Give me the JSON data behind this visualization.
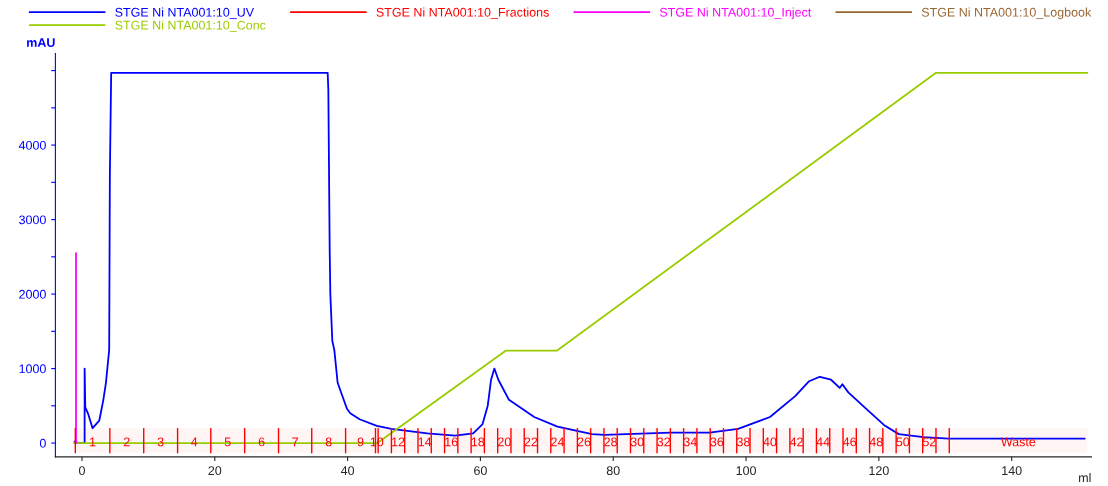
{
  "chart_data": {
    "type": "line",
    "ylabel": "mAU",
    "xlabel": "ml",
    "xlim": [
      -4,
      152
    ],
    "xticks": [
      0,
      20,
      40,
      60,
      80,
      100,
      120,
      140
    ],
    "ylim": [
      -185,
      5230
    ],
    "yticks": [
      0,
      {
        "value": 500,
        "label": null
      },
      1000,
      {
        "value": 1500,
        "label": null
      },
      2000,
      {
        "value": 2500,
        "label": null
      },
      3000,
      {
        "value": 3500,
        "label": null
      },
      4000,
      {
        "value": 4500,
        "label": null
      },
      {
        "value": 5000,
        "label": null
      }
    ],
    "legend": "top",
    "grid": false,
    "marker": "none",
    "series": [
      {
        "name": "STGE Ni NTA001:10_UV",
        "color": "#0000ff",
        "x": [
          -1.1,
          -0.6,
          0.4,
          0.4,
          0.5,
          0.9,
          1.6,
          2.6,
          3.2,
          3.6,
          4.1,
          4.2,
          4.4,
          37.0,
          37.1,
          37.3,
          37.4,
          37.7,
          38.0,
          38.5,
          39.9,
          40.4,
          41.8,
          44.4,
          46.6,
          52.0,
          56.2,
          58.9,
          60.3,
          61.1,
          61.6,
          62.1,
          62.7,
          64.3,
          68.1,
          71.6,
          76.8,
          78.7,
          88.6,
          94.5,
          98.8,
          103.6,
          107.4,
          109.5,
          111.1,
          112.8,
          114.1,
          114.5,
          115.4,
          118.1,
          120.8,
          123.0,
          126.7,
          130.5,
          151.0
        ],
        "values": [
          20,
          0,
          0,
          1000,
          480,
          400,
          200,
          300,
          570,
          800,
          1250,
          3600,
          4970,
          4970,
          4740,
          2610,
          2000,
          1370,
          1250,
          810,
          460,
          400,
          320,
          230,
          190,
          130,
          100,
          130,
          250,
          500,
          850,
          1000,
          850,
          580,
          350,
          220,
          120,
          110,
          140,
          140,
          190,
          350,
          630,
          830,
          890,
          850,
          740,
          790,
          680,
          460,
          240,
          120,
          80,
          60,
          60
        ]
      },
      {
        "name": "STGE Ni NTA001:10_Conc",
        "color": "#99cc00",
        "x": [
          -1.2,
          44.5,
          63.8,
          71.5,
          128.6,
          151.4
        ],
        "values": [
          0,
          0,
          1240,
          1240,
          4970,
          4970
        ]
      },
      {
        "name": "STGE Ni NTA001:10_Fractions",
        "color": "#ff0000"
      },
      {
        "name": "STGE Ni NTA001:10_Inject",
        "color": "#ff00ff",
        "x": [
          -0.9,
          -0.9
        ],
        "values": [
          0,
          2550
        ]
      },
      {
        "name": "STGE Ni NTA001:10_Logbook",
        "color": "#996633"
      }
    ],
    "bands": [
      {
        "axis": "x",
        "from": -1.0,
        "to": 4.2,
        "label": "1",
        "color": "#ff0000"
      },
      {
        "axis": "x",
        "from": 4.2,
        "to": 9.3,
        "label": "2",
        "color": "#ff0000"
      },
      {
        "axis": "x",
        "from": 9.3,
        "to": 14.4,
        "label": "3",
        "color": "#ff0000"
      },
      {
        "axis": "x",
        "from": 14.4,
        "to": 19.4,
        "label": "4",
        "color": "#ff0000"
      },
      {
        "axis": "x",
        "from": 19.4,
        "to": 24.5,
        "label": "5",
        "color": "#ff0000"
      },
      {
        "axis": "x",
        "from": 24.5,
        "to": 29.6,
        "label": "6",
        "color": "#ff0000"
      },
      {
        "axis": "x",
        "from": 29.6,
        "to": 34.6,
        "label": "7",
        "color": "#ff0000"
      },
      {
        "axis": "x",
        "from": 34.6,
        "to": 39.7,
        "label": "8",
        "color": "#ff0000"
      },
      {
        "axis": "x",
        "from": 39.7,
        "to": 44.2,
        "label": "9",
        "color": "#ff0000"
      },
      {
        "axis": "x",
        "from": 44.2,
        "to": 44.6,
        "label": "10",
        "color": "#ff0000"
      },
      {
        "axis": "x",
        "from": 44.6,
        "to": 46.6,
        "color": "#ff0000"
      },
      {
        "axis": "x",
        "from": 46.6,
        "to": 48.6,
        "label": "12",
        "color": "#ff0000"
      },
      {
        "axis": "x",
        "from": 48.6,
        "to": 50.6,
        "color": "#ff0000"
      },
      {
        "axis": "x",
        "from": 50.6,
        "to": 52.6,
        "label": "14",
        "color": "#ff0000"
      },
      {
        "axis": "x",
        "from": 52.6,
        "to": 54.6,
        "color": "#ff0000"
      },
      {
        "axis": "x",
        "from": 54.6,
        "to": 56.6,
        "label": "16",
        "color": "#ff0000"
      },
      {
        "axis": "x",
        "from": 56.6,
        "to": 58.6,
        "color": "#ff0000"
      },
      {
        "axis": "x",
        "from": 58.6,
        "to": 60.6,
        "label": "18",
        "color": "#ff0000"
      },
      {
        "axis": "x",
        "from": 60.6,
        "to": 62.6,
        "color": "#ff0000"
      },
      {
        "axis": "x",
        "from": 62.6,
        "to": 64.6,
        "label": "20",
        "color": "#ff0000"
      },
      {
        "axis": "x",
        "from": 64.6,
        "to": 66.6,
        "color": "#ff0000"
      },
      {
        "axis": "x",
        "from": 66.6,
        "to": 68.6,
        "label": "22",
        "color": "#ff0000"
      },
      {
        "axis": "x",
        "from": 68.6,
        "to": 70.6,
        "color": "#ff0000"
      },
      {
        "axis": "x",
        "from": 70.6,
        "to": 72.6,
        "label": "24",
        "color": "#ff0000"
      },
      {
        "axis": "x",
        "from": 72.6,
        "to": 74.6,
        "color": "#ff0000"
      },
      {
        "axis": "x",
        "from": 74.6,
        "to": 76.6,
        "label": "26",
        "color": "#ff0000"
      },
      {
        "axis": "x",
        "from": 76.6,
        "to": 78.6,
        "color": "#ff0000"
      },
      {
        "axis": "x",
        "from": 78.6,
        "to": 80.6,
        "label": "28",
        "color": "#ff0000"
      },
      {
        "axis": "x",
        "from": 80.6,
        "to": 82.6,
        "color": "#ff0000"
      },
      {
        "axis": "x",
        "from": 82.6,
        "to": 84.6,
        "label": "30",
        "color": "#ff0000"
      },
      {
        "axis": "x",
        "from": 84.6,
        "to": 86.6,
        "color": "#ff0000"
      },
      {
        "axis": "x",
        "from": 86.6,
        "to": 88.6,
        "label": "32",
        "color": "#ff0000"
      },
      {
        "axis": "x",
        "from": 88.6,
        "to": 90.6,
        "color": "#ff0000"
      },
      {
        "axis": "x",
        "from": 90.6,
        "to": 92.6,
        "label": "34",
        "color": "#ff0000"
      },
      {
        "axis": "x",
        "from": 92.6,
        "to": 94.6,
        "color": "#ff0000"
      },
      {
        "axis": "x",
        "from": 94.6,
        "to": 96.6,
        "label": "36",
        "color": "#ff0000"
      },
      {
        "axis": "x",
        "from": 96.6,
        "to": 98.6,
        "color": "#ff0000"
      },
      {
        "axis": "x",
        "from": 98.6,
        "to": 100.6,
        "label": "38",
        "color": "#ff0000"
      },
      {
        "axis": "x",
        "from": 100.6,
        "to": 102.6,
        "color": "#ff0000"
      },
      {
        "axis": "x",
        "from": 102.6,
        "to": 104.6,
        "label": "40",
        "color": "#ff0000"
      },
      {
        "axis": "x",
        "from": 104.6,
        "to": 106.6,
        "color": "#ff0000"
      },
      {
        "axis": "x",
        "from": 106.6,
        "to": 108.6,
        "label": "42",
        "color": "#ff0000"
      },
      {
        "axis": "x",
        "from": 108.6,
        "to": 110.6,
        "color": "#ff0000"
      },
      {
        "axis": "x",
        "from": 110.6,
        "to": 112.6,
        "label": "44",
        "color": "#ff0000"
      },
      {
        "axis": "x",
        "from": 112.6,
        "to": 114.6,
        "color": "#ff0000"
      },
      {
        "axis": "x",
        "from": 114.6,
        "to": 116.6,
        "label": "46",
        "color": "#ff0000"
      },
      {
        "axis": "x",
        "from": 116.6,
        "to": 118.6,
        "color": "#ff0000"
      },
      {
        "axis": "x",
        "from": 118.6,
        "to": 120.6,
        "label": "48",
        "color": "#ff0000"
      },
      {
        "axis": "x",
        "from": 120.6,
        "to": 122.6,
        "color": "#ff0000"
      },
      {
        "axis": "x",
        "from": 122.6,
        "to": 124.6,
        "label": "50",
        "color": "#ff0000"
      },
      {
        "axis": "x",
        "from": 124.6,
        "to": 126.6,
        "color": "#ff0000"
      },
      {
        "axis": "x",
        "from": 126.6,
        "to": 128.6,
        "label": "52",
        "color": "#ff0000"
      },
      {
        "axis": "x",
        "from": 128.6,
        "to": 130.6,
        "color": "#ff0000"
      },
      {
        "axis": "x",
        "from": 130.6,
        "to": 151.4,
        "label": "Waste",
        "color": "#ff0000"
      }
    ]
  }
}
